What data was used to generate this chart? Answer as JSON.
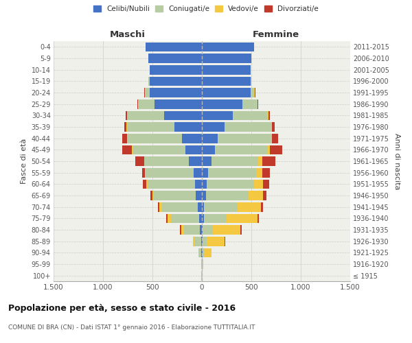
{
  "age_groups": [
    "100+",
    "95-99",
    "90-94",
    "85-89",
    "80-84",
    "75-79",
    "70-74",
    "65-69",
    "60-64",
    "55-59",
    "50-54",
    "45-49",
    "40-44",
    "35-39",
    "30-34",
    "25-29",
    "20-24",
    "15-19",
    "10-14",
    "5-9",
    "0-4"
  ],
  "birth_years": [
    "≤ 1915",
    "1916-1920",
    "1921-1925",
    "1926-1930",
    "1931-1935",
    "1936-1940",
    "1941-1945",
    "1946-1950",
    "1951-1955",
    "1956-1960",
    "1961-1965",
    "1966-1970",
    "1971-1975",
    "1976-1980",
    "1981-1985",
    "1986-1990",
    "1991-1995",
    "1996-2000",
    "2001-2005",
    "2006-2010",
    "2011-2015"
  ],
  "maschi": {
    "celibi": [
      2,
      2,
      5,
      10,
      20,
      30,
      40,
      60,
      70,
      80,
      130,
      170,
      200,
      280,
      380,
      480,
      530,
      530,
      530,
      540,
      570
    ],
    "coniugati": [
      2,
      3,
      20,
      60,
      160,
      280,
      360,
      430,
      480,
      490,
      450,
      530,
      550,
      480,
      380,
      160,
      40,
      10,
      0,
      0,
      0
    ],
    "vedovi": [
      0,
      0,
      10,
      20,
      30,
      40,
      30,
      10,
      10,
      5,
      5,
      5,
      5,
      5,
      0,
      5,
      5,
      5,
      0,
      0,
      0
    ],
    "divorziati": [
      0,
      0,
      0,
      0,
      10,
      10,
      15,
      20,
      40,
      30,
      90,
      100,
      50,
      20,
      10,
      5,
      5,
      0,
      0,
      0,
      0
    ]
  },
  "femmine": {
    "nubili": [
      2,
      2,
      5,
      10,
      10,
      20,
      20,
      40,
      50,
      60,
      100,
      130,
      160,
      230,
      310,
      410,
      490,
      490,
      490,
      500,
      530
    ],
    "coniugate": [
      2,
      2,
      15,
      40,
      100,
      230,
      340,
      430,
      480,
      490,
      470,
      540,
      540,
      470,
      360,
      150,
      40,
      10,
      0,
      0,
      0
    ],
    "vedove": [
      5,
      10,
      80,
      180,
      280,
      310,
      240,
      150,
      90,
      60,
      40,
      20,
      10,
      5,
      5,
      5,
      5,
      0,
      0,
      0,
      0
    ],
    "divorziate": [
      0,
      0,
      0,
      5,
      10,
      15,
      20,
      30,
      60,
      80,
      130,
      120,
      60,
      30,
      10,
      5,
      5,
      0,
      0,
      0,
      0
    ]
  },
  "colors": {
    "celibi_nubili": "#4472c4",
    "coniugati": "#b8cca4",
    "vedovi": "#f5c842",
    "divorziati": "#c0392b"
  },
  "title": "Popolazione per età, sesso e stato civile - 2016",
  "subtitle": "COMUNE DI BRA (CN) - Dati ISTAT 1° gennaio 2016 - Elaborazione TUTTITALIA.IT",
  "ylabel_left": "Fasce di età",
  "ylabel_right": "Anni di nascita",
  "xlabel_left": "Maschi",
  "xlabel_right": "Femmine",
  "xlim": 1500,
  "bg_color": "#f0f0ea",
  "legend_labels": [
    "Celibi/Nubili",
    "Coniugati/e",
    "Vedovi/e",
    "Divorziati/e"
  ]
}
